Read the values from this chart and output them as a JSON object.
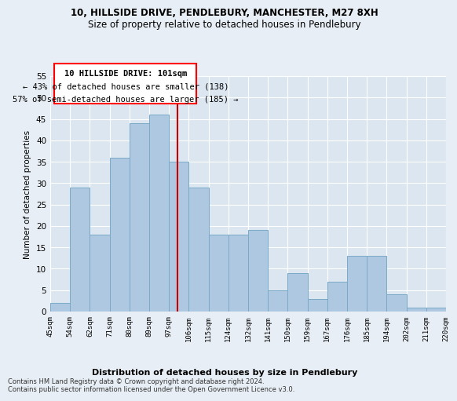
{
  "title1": "10, HILLSIDE DRIVE, PENDLEBURY, MANCHESTER, M27 8XH",
  "title2": "Size of property relative to detached houses in Pendlebury",
  "xlabel": "Distribution of detached houses by size in Pendlebury",
  "ylabel": "Number of detached properties",
  "categories": [
    "45sqm",
    "54sqm",
    "62sqm",
    "71sqm",
    "80sqm",
    "89sqm",
    "97sqm",
    "106sqm",
    "115sqm",
    "124sqm",
    "132sqm",
    "141sqm",
    "150sqm",
    "159sqm",
    "167sqm",
    "176sqm",
    "185sqm",
    "194sqm",
    "202sqm",
    "211sqm",
    "220sqm"
  ],
  "values": [
    2,
    29,
    18,
    36,
    44,
    46,
    35,
    29,
    18,
    18,
    19,
    5,
    9,
    3,
    7,
    13,
    13,
    4,
    1,
    1
  ],
  "bar_color": "#adc8e0",
  "bar_edge_color": "#7aaac8",
  "vline_color": "#cc0000",
  "ylim": [
    0,
    55
  ],
  "yticks": [
    0,
    5,
    10,
    15,
    20,
    25,
    30,
    35,
    40,
    45,
    50,
    55
  ],
  "annotation_title": "10 HILLSIDE DRIVE: 101sqm",
  "annotation_line1": "← 43% of detached houses are smaller (138)",
  "annotation_line2": "57% of semi-detached houses are larger (185) →",
  "footer1": "Contains HM Land Registry data © Crown copyright and database right 2024.",
  "footer2": "Contains public sector information licensed under the Open Government Licence v3.0.",
  "bg_color": "#e8eef5",
  "plot_bg_color": "#dce6f0"
}
